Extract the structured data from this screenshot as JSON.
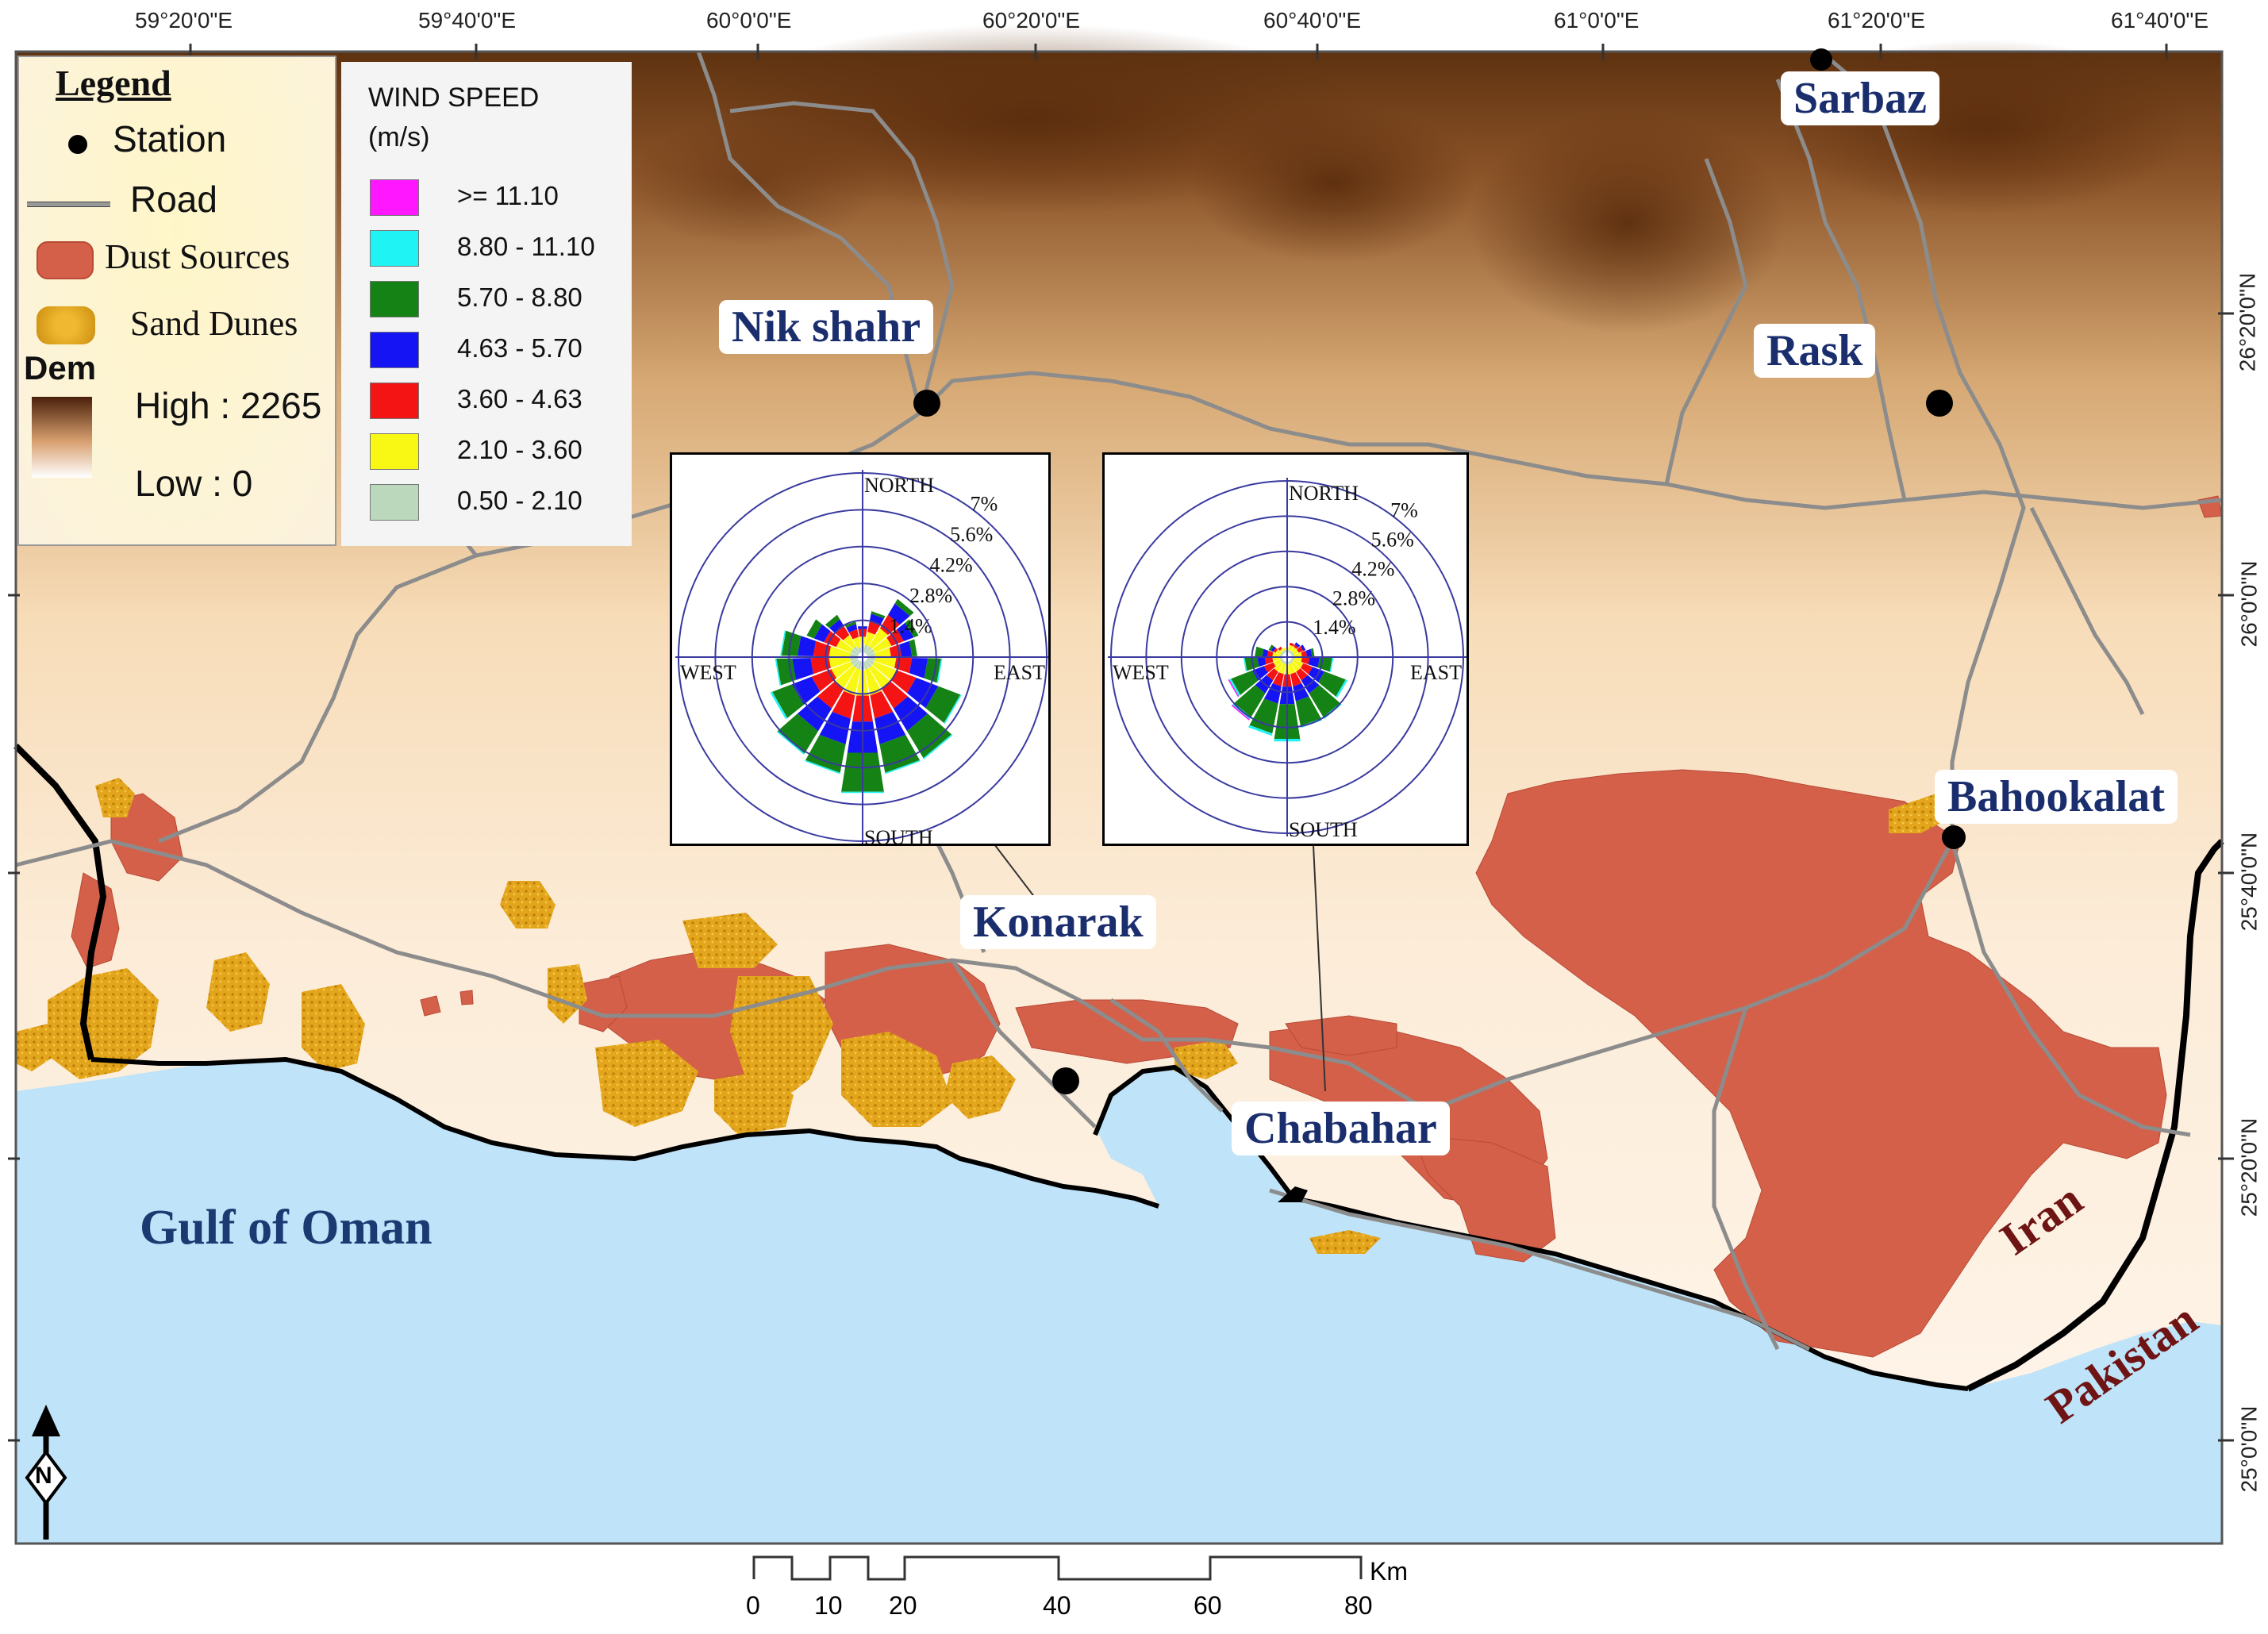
{
  "map": {
    "top_longitudes": [
      "59°20'0\"E",
      "59°40'0\"E",
      "60°0'0\"E",
      "60°20'0\"E",
      "60°40'0\"E",
      "61°0'0\"E",
      "61°20'0\"E",
      "61°40'0\"E"
    ],
    "right_latitudes": [
      "26°20'0\"N",
      "26°0'0\"N",
      "25°40'0\"N",
      "25°20'0\"N",
      "25°0'0\"N"
    ],
    "sea_label": "Gulf of Oman",
    "country_labels": {
      "iran": "Iran",
      "pakistan": "Pakistan"
    },
    "north_arrow_letter": "N",
    "colors": {
      "sea": "#bfe3f8",
      "dem_high": "#6b3a14",
      "dem_low": "#fdf4e8",
      "dust_source": "#d4604a",
      "sand_dune": "#e0a21a",
      "road": "#8c8c8c",
      "border": "#000000",
      "label_text": "#1a2e6e",
      "country_text": "#6e1414"
    },
    "stations": [
      {
        "name": "Sarbaz"
      },
      {
        "name": "Nik shahr"
      },
      {
        "name": "Rask"
      },
      {
        "name": "Bahookalat"
      },
      {
        "name": "Konarak"
      },
      {
        "name": "Chabahar"
      }
    ]
  },
  "legend": {
    "title": "Legend",
    "items": [
      {
        "label": "Station",
        "icon": "station-dot-icon"
      },
      {
        "label": "Road",
        "icon": "road-line-icon"
      },
      {
        "label": "Dust Sources",
        "icon": "dust-source-swatch"
      },
      {
        "label": "Sand Dunes",
        "icon": "sand-dune-swatch"
      }
    ],
    "dem": {
      "title": "Dem",
      "high": "High : 2265",
      "low": "Low : 0"
    }
  },
  "wind_legend": {
    "title_line1": "WIND SPEED",
    "title_line2": "(m/s)",
    "classes": [
      {
        "label": ">= 11.10",
        "color": "#ff18ff"
      },
      {
        "label": "8.80 - 11.10",
        "color": "#1ff3f3"
      },
      {
        "label": "5.70 - 8.80",
        "color": "#148214"
      },
      {
        "label": "4.63 - 5.70",
        "color": "#1414f5"
      },
      {
        "label": "3.60 - 4.63",
        "color": "#f51414"
      },
      {
        "label": "2.10 - 3.60",
        "color": "#f8f814"
      },
      {
        "label": "0.50 - 2.10",
        "color": "#bcd8bc"
      }
    ]
  },
  "wind_roses": [
    {
      "station": "Konarak",
      "directions": {
        "north": "NORTH",
        "south": "SOUTH",
        "east": "EAST",
        "west": "WEST"
      },
      "ring_labels": [
        "1.4%",
        "2.8%",
        "4.2%",
        "5.6%",
        "7%"
      ],
      "ring_max_percent": 7
    },
    {
      "station": "Chabahar",
      "directions": {
        "north": "NORTH",
        "south": "SOUTH",
        "east": "EAST",
        "west": "WEST"
      },
      "ring_labels": [
        "1.4%",
        "2.8%",
        "4.2%",
        "5.6%",
        "7%"
      ],
      "ring_max_percent": 7
    }
  ],
  "scale_bar": {
    "unit": "Km",
    "ticks": [
      "0",
      "10",
      "20",
      "40",
      "60",
      "80"
    ]
  }
}
